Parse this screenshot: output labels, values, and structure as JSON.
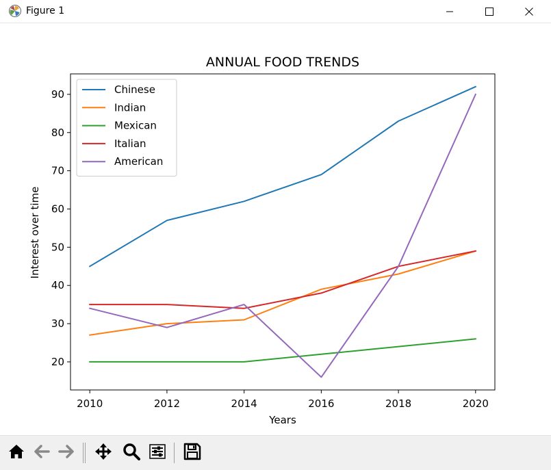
{
  "window": {
    "title": "Figure 1",
    "icons": {
      "app": "matplotlib-logo-icon",
      "minimize": "minimize-icon",
      "maximize": "maximize-icon",
      "close": "close-icon"
    }
  },
  "toolbar": {
    "buttons": [
      {
        "name": "home",
        "icon": "home-icon"
      },
      {
        "name": "back",
        "icon": "arrow-left-icon"
      },
      {
        "name": "forward",
        "icon": "arrow-right-icon"
      },
      {
        "name": "pan",
        "icon": "move-icon"
      },
      {
        "name": "zoom",
        "icon": "magnifier-icon"
      },
      {
        "name": "configure-subplots",
        "icon": "sliders-icon"
      },
      {
        "name": "save",
        "icon": "floppy-disk-icon"
      }
    ]
  },
  "chart_data": {
    "type": "line",
    "title": "ANNUAL FOOD TRENDS",
    "xlabel": "Years",
    "ylabel": "Interest over time",
    "x": [
      2010,
      2012,
      2014,
      2016,
      2018,
      2020
    ],
    "xticks": [
      2010,
      2012,
      2014,
      2016,
      2018,
      2020
    ],
    "yticks": [
      20,
      30,
      40,
      50,
      60,
      70,
      80,
      90
    ],
    "xlim": [
      2009.5,
      2020.5
    ],
    "ylim": [
      12.65,
      95.35
    ],
    "grid": false,
    "legend_position": "upper-left",
    "series": [
      {
        "name": "Chinese",
        "color": "#1f77b4",
        "values": [
          45,
          57,
          62,
          69,
          83,
          92
        ]
      },
      {
        "name": "Indian",
        "color": "#ff7f0e",
        "values": [
          27,
          30,
          31,
          39,
          43,
          49
        ]
      },
      {
        "name": "Mexican",
        "color": "#2ca02c",
        "values": [
          20,
          20,
          20,
          22,
          24,
          26
        ]
      },
      {
        "name": "Italian",
        "color": "#d62728",
        "values": [
          35,
          35,
          34,
          38,
          45,
          49
        ]
      },
      {
        "name": "American",
        "color": "#9467bd",
        "values": [
          34,
          29,
          35,
          16,
          45,
          90
        ]
      }
    ]
  }
}
